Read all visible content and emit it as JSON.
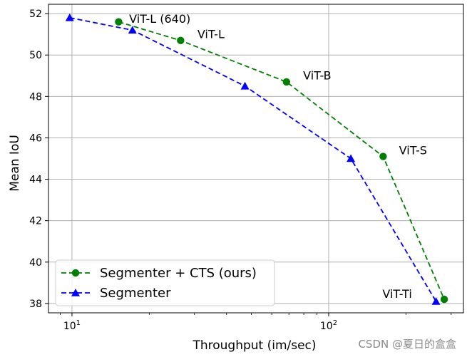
{
  "chart_data": {
    "type": "line",
    "title": "",
    "xlabel": "Throughput (im/sec)",
    "ylabel": "Mean IoU",
    "xscale": "log",
    "xlim": [
      8.1,
      335
    ],
    "ylim": [
      37.55,
      52.45
    ],
    "x_ticks": [
      {
        "value": 10,
        "base": "10",
        "exp": "1"
      },
      {
        "value": 100,
        "base": "10",
        "exp": "2"
      }
    ],
    "y_ticks": [
      38,
      40,
      42,
      44,
      46,
      48,
      50,
      52
    ],
    "grid": true,
    "legend_position": "lower-left",
    "series": [
      {
        "name": "Segmenter + CTS (ours)",
        "color": "#008000",
        "marker": "circle",
        "line_style": "dashed",
        "x": [
          15.2,
          26.5,
          68.5,
          163,
          282
        ],
        "y": [
          51.6,
          50.7,
          48.7,
          45.1,
          38.2
        ]
      },
      {
        "name": "Segmenter",
        "color": "#0000ff",
        "marker": "triangle",
        "line_style": "dashed",
        "x": [
          9.8,
          17.2,
          47.2,
          122,
          262
        ],
        "y": [
          51.8,
          51.2,
          48.5,
          45.0,
          38.1
        ]
      }
    ],
    "annotations": [
      {
        "text": "ViT-L (640)",
        "x": 16.7,
        "y": 51.55
      },
      {
        "text": "ViT-L",
        "x": 30.8,
        "y": 50.82
      },
      {
        "text": "ViT-B",
        "x": 79.5,
        "y": 48.82
      },
      {
        "text": "ViT-S",
        "x": 188,
        "y": 45.2
      },
      {
        "text": "ViT-Ti",
        "x": 162,
        "y": 38.28
      }
    ]
  },
  "watermark": "CSDN @夏日的盒盒"
}
